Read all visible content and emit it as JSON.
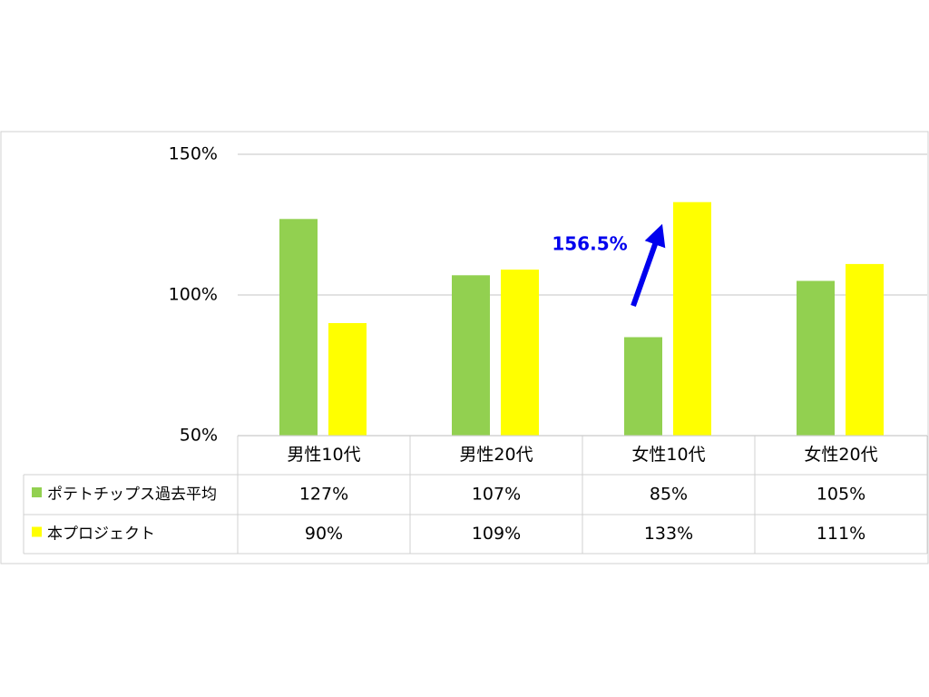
{
  "chart_data": {
    "type": "bar",
    "categories": [
      "男性10代",
      "男性20代",
      "女性10代",
      "女性20代"
    ],
    "series": [
      {
        "name": "ポテトチップス過去平均",
        "color": "#92d050",
        "values": [
          127,
          107,
          85,
          105
        ],
        "value_labels": [
          "127%",
          "107%",
          "85%",
          "105%"
        ]
      },
      {
        "name": "本プロジェクト",
        "color": "#ffff00",
        "values": [
          90,
          109,
          133,
          111
        ],
        "value_labels": [
          "90%",
          "109%",
          "133%",
          "111%"
        ]
      }
    ],
    "ylim": [
      50,
      150
    ],
    "yticks": [
      {
        "value": 50,
        "label": "50%"
      },
      {
        "value": 100,
        "label": "100%"
      },
      {
        "value": 150,
        "label": "150%"
      }
    ],
    "grid": true,
    "annotation": "156.5%"
  }
}
